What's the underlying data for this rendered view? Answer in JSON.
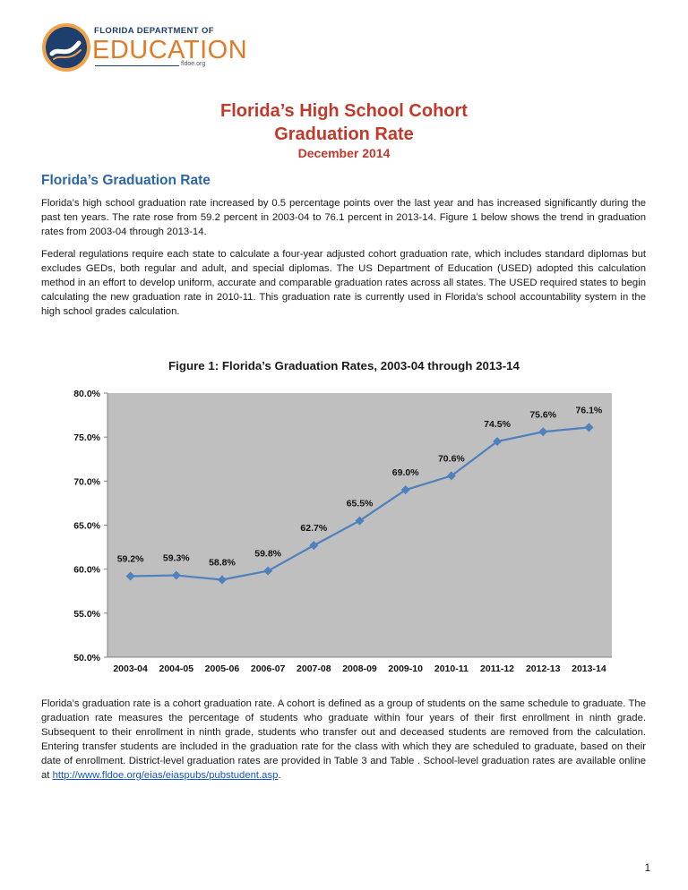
{
  "logo": {
    "line1": "FLORIDA DEPARTMENT OF",
    "line2": "EDUCATION",
    "line3": "fldoe.org"
  },
  "title": {
    "line1": "Florida’s High School Cohort",
    "line2": "Graduation Rate"
  },
  "date": "December 2014",
  "section_heading": "Florida’s Graduation Rate",
  "paragraphs": {
    "p1": "Florida’s high school graduation rate increased by 0.5 percentage points over the last year and has increased significantly during the past ten years. The rate rose from 59.2 percent in 2003-04 to 76.1 percent in 2013-14. Figure 1 below shows the trend in graduation rates from 2003-04 through 2013-14.",
    "p2": "Federal regulations require each state to calculate a four-year adjusted cohort graduation rate, which includes standard diplomas but excludes GEDs, both regular and adult, and special diplomas. The US Department of Education (USED) adopted this calculation method in an effort to develop uniform, accurate and comparable graduation rates across all states. The USED required states to begin calculating the new graduation rate in 2010-11. This graduation rate is currently used in Florida’s school accountability system in the high school grades calculation.",
    "p3": "Florida’s graduation rate is a cohort graduation rate. A cohort is defined as a group of students on the same schedule to graduate. The graduation rate measures the percentage of students who graduate within four years of their first enrollment in ninth grade. Subsequent to their enrollment in ninth grade, students who transfer out and deceased students are removed from the calculation. Entering transfer students are included in the graduation rate for the class with which they are scheduled to graduate, based on their date of enrollment. District-level graduation rates are provided in Table 3 and Table . School-level graduation rates are available online at",
    "link": "http://www.fldoe.org/eias/eiaspubs/pubstudent.asp",
    "link_suffix": "."
  },
  "figure_caption": "Figure 1: Florida’s Graduation Rates, 2003-04 through 2013-14",
  "chart_data": {
    "type": "line",
    "categories": [
      "2003-04",
      "2004-05",
      "2005-06",
      "2006-07",
      "2007-08",
      "2008-09",
      "2009-10",
      "2010-11",
      "2011-12",
      "2012-13",
      "2013-14"
    ],
    "values": [
      59.2,
      59.3,
      58.8,
      59.8,
      62.7,
      65.5,
      69.0,
      70.6,
      74.5,
      75.6,
      76.1
    ],
    "data_labels": [
      "59.2%",
      "59.3%",
      "58.8%",
      "59.8%",
      "62.7%",
      "65.5%",
      "69.0%",
      "70.6%",
      "74.5%",
      "75.6%",
      "76.1%"
    ],
    "ylim": [
      50,
      80
    ],
    "yticks": [
      "50.0%",
      "55.0%",
      "60.0%",
      "65.0%",
      "70.0%",
      "75.0%",
      "80.0%"
    ],
    "grid": false,
    "legend": "none",
    "colors": {
      "line": "#4f81bd",
      "plot_bg": "#bfbfbf"
    }
  },
  "page_number": "1"
}
